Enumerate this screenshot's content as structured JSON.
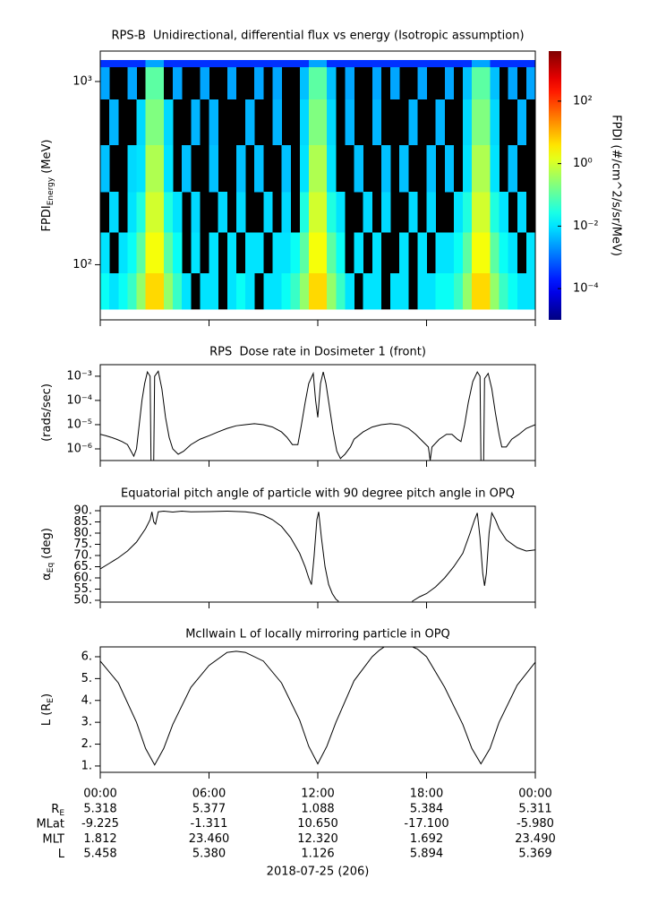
{
  "chart_data": [
    {
      "type": "heatmap",
      "title": "RPS-B  Unidirectional, differential flux vs energy (Isotropic assumption)",
      "ylabel": {
        "text": "FPDI",
        "sub": "Energy",
        "after": "(MeV)"
      },
      "xlim": [
        0,
        24
      ],
      "xticks": [
        0,
        6,
        12,
        18,
        24
      ],
      "ylog": true,
      "ylim": [
        50,
        1466
      ],
      "yticks": [
        {
          "value": 100,
          "label": "10²"
        },
        {
          "value": 1000,
          "label": "10³"
        }
      ],
      "xbins": [
        0,
        0.5,
        1,
        1.5,
        2,
        2.5,
        3,
        3.5,
        4,
        4.5,
        5,
        5.5,
        6,
        6.5,
        7,
        7.5,
        8,
        8.5,
        9,
        9.5,
        10,
        10.5,
        11,
        11.5,
        12,
        12.5,
        13,
        13.5,
        14,
        14.5,
        15,
        15.5,
        16,
        16.5,
        17,
        17.5,
        18,
        18.5,
        19,
        19.5,
        20,
        20.5,
        21,
        21.5,
        22,
        22.5,
        23,
        23.5,
        24
      ],
      "ybins": [
        57,
        90,
        150,
        250,
        450,
        800,
        1200,
        1310
      ],
      "z": [
        [
          0.02,
          0.01,
          0.02,
          0.05,
          0.3,
          5,
          5,
          0.3,
          0.05,
          0.01,
          null,
          0.01,
          0.01,
          null,
          0.01,
          0.02,
          0.01,
          null,
          0.01,
          0.01,
          0.02,
          0.05,
          0.3,
          5,
          5,
          0.3,
          0.05,
          0.01,
          null,
          0.01,
          0.01,
          null,
          0.01,
          0.01,
          null,
          0.01,
          0.01,
          0.02,
          0.02,
          0.05,
          0.3,
          5,
          5,
          0.3,
          0.05,
          0.02,
          0.01,
          0.01
        ],
        [
          0.01,
          null,
          0.01,
          0.02,
          0.1,
          2,
          2,
          0.1,
          0.02,
          null,
          0.01,
          null,
          0.01,
          null,
          0.01,
          null,
          0.01,
          0.01,
          null,
          0.01,
          0.01,
          0.02,
          0.1,
          2,
          2,
          0.1,
          0.02,
          null,
          0.01,
          null,
          0.01,
          null,
          null,
          0.01,
          null,
          0.01,
          null,
          0.01,
          0.01,
          0.02,
          0.1,
          2,
          2,
          0.1,
          0.02,
          0.01,
          null,
          0.01
        ],
        [
          null,
          0.008,
          null,
          0.01,
          0.03,
          1,
          1,
          0.03,
          0.01,
          null,
          0.008,
          null,
          null,
          0.008,
          null,
          0.008,
          null,
          null,
          0.008,
          null,
          0.008,
          null,
          0.03,
          1,
          1,
          0.03,
          0.01,
          null,
          null,
          0.008,
          null,
          0.008,
          null,
          null,
          0.008,
          null,
          0.008,
          null,
          null,
          0.01,
          0.03,
          1,
          1,
          0.03,
          0.01,
          null,
          0.008,
          null
        ],
        [
          0.005,
          null,
          null,
          0.008,
          0.01,
          0.5,
          0.5,
          0.01,
          null,
          0.005,
          null,
          null,
          0.005,
          null,
          null,
          0.005,
          null,
          0.005,
          null,
          null,
          0.005,
          null,
          0.01,
          0.5,
          0.5,
          0.01,
          null,
          null,
          0.005,
          null,
          null,
          0.005,
          null,
          0.005,
          null,
          null,
          0.005,
          null,
          0.005,
          null,
          0.01,
          0.5,
          0.5,
          0.01,
          null,
          0.005,
          null,
          null
        ],
        [
          null,
          0.004,
          null,
          null,
          0.008,
          0.2,
          0.2,
          0.008,
          null,
          null,
          0.004,
          null,
          0.004,
          null,
          null,
          null,
          0.004,
          null,
          null,
          0.004,
          null,
          null,
          0.008,
          0.2,
          0.2,
          0.008,
          null,
          0.004,
          null,
          null,
          0.004,
          null,
          null,
          null,
          0.004,
          null,
          null,
          0.004,
          null,
          null,
          0.008,
          0.2,
          0.2,
          0.008,
          null,
          null,
          0.004,
          null
        ],
        [
          0.003,
          null,
          null,
          0.003,
          null,
          0.1,
          0.1,
          null,
          0.003,
          null,
          null,
          0.003,
          null,
          null,
          0.003,
          null,
          null,
          0.003,
          null,
          0.003,
          null,
          null,
          0.005,
          0.1,
          0.1,
          0.005,
          null,
          0.003,
          null,
          null,
          0.003,
          null,
          0.003,
          null,
          null,
          0.003,
          null,
          null,
          0.003,
          null,
          0.005,
          0.1,
          0.1,
          0.005,
          null,
          0.003,
          null,
          0.003
        ],
        [
          0.0003,
          0.0003,
          0.0003,
          0.0003,
          0.0003,
          0.003,
          0.003,
          0.0003,
          0.0003,
          0.0003,
          0.0003,
          0.0003,
          0.0003,
          0.0003,
          0.0003,
          0.0003,
          0.0003,
          0.0003,
          0.0003,
          0.0003,
          0.0003,
          0.0003,
          0.0003,
          0.003,
          0.003,
          0.0003,
          0.0003,
          0.0003,
          0.0003,
          0.0003,
          0.0003,
          0.0003,
          0.0003,
          0.0003,
          0.0003,
          0.0003,
          0.0003,
          0.0003,
          0.0003,
          0.0003,
          0.0003,
          0.003,
          0.003,
          0.0003,
          0.0003,
          0.0003,
          0.0003,
          0.0003
        ]
      ],
      "colorbar": {
        "label": "FPDI (#/cm^2/s/sr/MeV)",
        "colormap": "jet",
        "zlim": [
          1e-05,
          4000
        ],
        "ticks": [
          {
            "value": 0.0001,
            "label": "10⁻⁴"
          },
          {
            "value": 0.01,
            "label": "10⁻²"
          },
          {
            "value": 1,
            "label": "10⁰"
          },
          {
            "value": 100,
            "label": "10²"
          }
        ]
      }
    },
    {
      "type": "line",
      "title": "RPS  Dose rate in Dosimeter 1 (front)",
      "ylabel": {
        "text": "(rads/sec)"
      },
      "color": "#000000",
      "xlim": [
        0,
        24
      ],
      "xticks": [
        0,
        6,
        12,
        18,
        24
      ],
      "ylog": true,
      "ylim": [
        3.3e-07,
        0.003
      ],
      "yticks": [
        {
          "value": 0.001,
          "label": "10⁻³"
        },
        {
          "value": 0.0001,
          "label": "10⁻⁴"
        },
        {
          "value": 1e-05,
          "label": "10⁻⁵"
        },
        {
          "value": 1e-06,
          "label": "10⁻⁶"
        }
      ],
      "x": [
        0,
        0.3,
        0.6,
        0.9,
        1.2,
        1.5,
        1.7,
        1.85,
        2.0,
        2.15,
        2.3,
        2.45,
        2.6,
        2.75,
        2.8,
        2.95,
        3.0,
        3.2,
        3.4,
        3.6,
        3.8,
        4.0,
        4.3,
        4.6,
        5.0,
        5.5,
        6.0,
        6.5,
        7.0,
        7.5,
        8.0,
        8.5,
        9.0,
        9.5,
        10.0,
        10.3,
        10.6,
        10.9,
        11.1,
        11.3,
        11.5,
        11.75,
        11.88,
        12.0,
        12.15,
        12.3,
        12.45,
        12.65,
        12.85,
        13.05,
        13.25,
        13.5,
        13.8,
        14.0,
        14.5,
        15.0,
        15.5,
        16.0,
        16.5,
        17.0,
        17.4,
        17.8,
        18.1,
        18.2,
        18.3,
        18.7,
        19.1,
        19.4,
        19.7,
        19.9,
        20.1,
        20.3,
        20.55,
        20.8,
        20.95,
        21.0,
        21.15,
        21.2,
        21.4,
        21.6,
        21.8,
        22.0,
        22.15,
        22.4,
        22.7,
        23.1,
        23.5,
        24
      ],
      "values": [
        4e-06,
        3.5e-06,
        3e-06,
        2.5e-06,
        2e-06,
        1.5e-06,
        8e-07,
        5e-07,
        1e-06,
        1e-05,
        0.0001,
        0.0005,
        0.0015,
        0.001,
        3.3e-07,
        3.3e-07,
        0.001,
        0.0016,
        0.0003,
        2e-05,
        3e-06,
        1e-06,
        6e-07,
        8e-07,
        1.5e-06,
        2.5e-06,
        3.5e-06,
        5e-06,
        7e-06,
        9e-06,
        1e-05,
        1.1e-05,
        1e-05,
        8e-06,
        5e-06,
        3e-06,
        1.5e-06,
        1.5e-06,
        1e-05,
        8e-05,
        0.0005,
        0.0013,
        0.0001,
        2e-05,
        0.0005,
        0.0015,
        0.0005,
        5e-05,
        5e-06,
        8e-07,
        4e-07,
        6e-07,
        1.2e-06,
        2.5e-06,
        5e-06,
        8e-06,
        1e-05,
        1.1e-05,
        1e-05,
        7e-06,
        4e-06,
        2e-06,
        1.2e-06,
        3.3e-07,
        1.2e-06,
        2.5e-06,
        4e-06,
        4e-06,
        2.5e-06,
        2e-06,
        1e-05,
        8e-05,
        0.0006,
        0.0015,
        0.001,
        3.3e-07,
        3.3e-07,
        0.0008,
        0.0013,
        0.0003,
        3e-05,
        4e-06,
        1.2e-06,
        1.2e-06,
        2.5e-06,
        4e-06,
        7e-06,
        1e-05
      ]
    },
    {
      "type": "line",
      "title": "Equatorial pitch angle of particle with 90 degree pitch angle in OPQ",
      "ylabel": {
        "text": "α",
        "sub": "Eq",
        "after": "(deg)"
      },
      "color": "#000000",
      "xlim": [
        0,
        24
      ],
      "xticks": [
        0,
        6,
        12,
        18,
        24
      ],
      "ylim": [
        49.2,
        92
      ],
      "yticks": [
        {
          "value": 50,
          "label": "50."
        },
        {
          "value": 55,
          "label": "55."
        },
        {
          "value": 60,
          "label": "60."
        },
        {
          "value": 65,
          "label": "65."
        },
        {
          "value": 70,
          "label": "70."
        },
        {
          "value": 75,
          "label": "75."
        },
        {
          "value": 80,
          "label": "80."
        },
        {
          "value": 85,
          "label": "85."
        },
        {
          "value": 90,
          "label": "90."
        }
      ],
      "x": [
        0,
        0.5,
        1,
        1.5,
        2,
        2.5,
        2.75,
        2.85,
        2.95,
        3.05,
        3.2,
        3.5,
        4,
        4.5,
        5,
        6,
        7,
        8,
        8.5,
        9,
        9.5,
        10,
        10.5,
        11,
        11.3,
        11.5,
        11.65,
        11.8,
        11.95,
        12.05,
        12.2,
        12.4,
        12.6,
        12.8,
        13.0,
        13.15,
        15,
        17.2,
        17.6,
        18,
        18.5,
        19,
        19.5,
        20,
        20.4,
        20.65,
        20.8,
        20.95,
        21.1,
        21.2,
        21.3,
        21.45,
        21.6,
        21.8,
        22,
        22.4,
        23,
        23.5,
        24
      ],
      "values": [
        64,
        66.5,
        69,
        72,
        76,
        82,
        86,
        89.5,
        85,
        84,
        89.5,
        89.8,
        89.4,
        89.8,
        89.5,
        89.6,
        89.8,
        89.5,
        89,
        88,
        86,
        83,
        78,
        71,
        65,
        60,
        57,
        70,
        86,
        89.5,
        78,
        65,
        57,
        53,
        50.5,
        49.5,
        null,
        49.5,
        51.5,
        53,
        56,
        60,
        65,
        71,
        80,
        86,
        89,
        78,
        62,
        56.5,
        62,
        80,
        89,
        86,
        82,
        77,
        73.5,
        72,
        72.5
      ]
    },
    {
      "type": "line",
      "title": "McIlwain L of locally mirroring particle in OPQ",
      "ylabel": {
        "text": "L (R",
        "sub": "E",
        "after": ")"
      },
      "color": "#000000",
      "xlim": [
        0,
        24
      ],
      "xticks": [
        {
          "value": 0,
          "label": "00:00"
        },
        {
          "value": 6,
          "label": "06:00"
        },
        {
          "value": 12,
          "label": "12:00"
        },
        {
          "value": 18,
          "label": "18:00"
        },
        {
          "value": 24,
          "label": "00:00"
        }
      ],
      "ylim": [
        0.71,
        6.45
      ],
      "yticks": [
        {
          "value": 1,
          "label": "1."
        },
        {
          "value": 2,
          "label": "2."
        },
        {
          "value": 3,
          "label": "3."
        },
        {
          "value": 4,
          "label": "4."
        },
        {
          "value": 5,
          "label": "5."
        },
        {
          "value": 6,
          "label": "6."
        }
      ],
      "x": [
        0,
        1,
        2,
        2.5,
        3,
        3.5,
        4,
        5,
        6,
        7,
        7.5,
        8,
        9,
        10,
        11,
        11.5,
        12,
        12.5,
        13,
        14,
        15,
        15.4,
        15.65,
        16.45,
        17.25,
        17.5,
        18,
        19,
        20,
        20.5,
        21,
        21.5,
        22,
        23,
        24
      ],
      "values": [
        5.8,
        4.8,
        3.0,
        1.8,
        1.05,
        1.8,
        2.9,
        4.6,
        5.6,
        6.2,
        6.25,
        6.2,
        5.8,
        4.8,
        3.1,
        1.9,
        1.1,
        1.9,
        3.0,
        4.9,
        6.0,
        6.3,
        6.44,
        null,
        6.44,
        6.35,
        6.0,
        4.6,
        2.9,
        1.8,
        1.1,
        1.8,
        3.0,
        4.7,
        5.75
      ]
    }
  ],
  "ephemeris": {
    "rows": [
      {
        "label": "R",
        "sub": "E",
        "values": [
          "5.318",
          "5.377",
          "1.088",
          "5.384",
          "5.311"
        ]
      },
      {
        "label": "MLat",
        "values": [
          "-9.225",
          "-1.311",
          "10.650",
          "-17.100",
          "-5.980"
        ]
      },
      {
        "label": "MLT",
        "values": [
          "1.812",
          "23.460",
          "12.320",
          "1.692",
          "23.490"
        ]
      },
      {
        "label": "L",
        "values": [
          "5.458",
          "5.380",
          "1.126",
          "5.894",
          "5.369"
        ]
      }
    ],
    "date": "2018-07-25 (206)"
  }
}
